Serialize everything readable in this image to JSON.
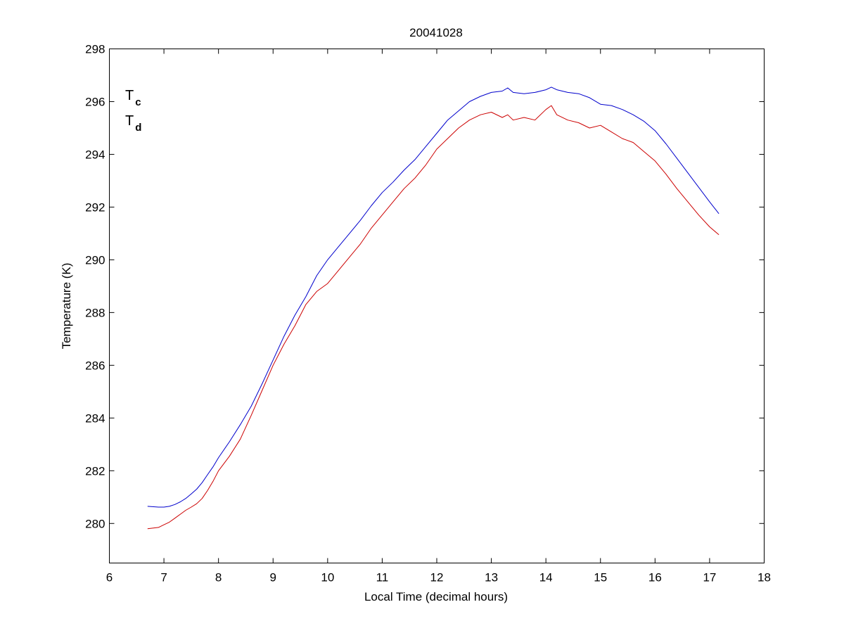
{
  "chart_data": {
    "type": "line",
    "title": "20041028",
    "xlabel": "Local Time (decimal hours)",
    "ylabel": "Temperature (K)",
    "xlim": [
      6,
      18
    ],
    "ylim": [
      278.5,
      298
    ],
    "xticks": [
      6,
      7,
      8,
      9,
      10,
      11,
      12,
      13,
      14,
      15,
      16,
      17,
      18
    ],
    "yticks": [
      280,
      282,
      284,
      286,
      288,
      290,
      292,
      294,
      296,
      298
    ],
    "grid": false,
    "legend": {
      "placement": "top-left",
      "entries": [
        {
          "base": "T",
          "sub": "c",
          "color": "#0000cc"
        },
        {
          "base": "T",
          "sub": "d",
          "color": "#cc0000"
        }
      ]
    },
    "series": [
      {
        "color": "#0000cc",
        "x": [
          6.7,
          6.9,
          7.0,
          7.1,
          7.2,
          7.3,
          7.4,
          7.5,
          7.6,
          7.7,
          7.8,
          7.9,
          8.0,
          8.2,
          8.4,
          8.6,
          8.8,
          9.0,
          9.2,
          9.4,
          9.6,
          9.8,
          10.0,
          10.2,
          10.4,
          10.6,
          10.8,
          11.0,
          11.2,
          11.4,
          11.6,
          11.8,
          12.0,
          12.2,
          12.4,
          12.6,
          12.8,
          13.0,
          13.2,
          13.3,
          13.4,
          13.6,
          13.8,
          14.0,
          14.1,
          14.2,
          14.4,
          14.6,
          14.8,
          15.0,
          15.2,
          15.4,
          15.6,
          15.8,
          16.0,
          16.2,
          16.4,
          16.6,
          16.8,
          17.0,
          17.17
        ],
        "y": [
          280.65,
          280.62,
          280.62,
          280.65,
          280.72,
          280.82,
          280.95,
          281.12,
          281.3,
          281.55,
          281.85,
          282.15,
          282.5,
          283.1,
          283.75,
          284.45,
          285.3,
          286.2,
          287.1,
          287.9,
          288.6,
          289.4,
          290.0,
          290.5,
          291.0,
          291.5,
          292.05,
          292.55,
          292.95,
          293.4,
          293.8,
          294.3,
          294.8,
          295.3,
          295.65,
          296.0,
          296.2,
          296.35,
          296.4,
          296.52,
          296.35,
          296.3,
          296.35,
          296.45,
          296.55,
          296.45,
          296.35,
          296.3,
          296.15,
          295.9,
          295.85,
          295.7,
          295.5,
          295.25,
          294.9,
          294.4,
          293.85,
          293.3,
          292.75,
          292.2,
          291.75
        ]
      },
      {
        "color": "#cc0000",
        "x": [
          6.7,
          6.9,
          7.0,
          7.1,
          7.2,
          7.3,
          7.4,
          7.5,
          7.6,
          7.7,
          7.8,
          7.9,
          8.0,
          8.2,
          8.4,
          8.6,
          8.8,
          9.0,
          9.2,
          9.4,
          9.6,
          9.8,
          10.0,
          10.2,
          10.4,
          10.6,
          10.8,
          11.0,
          11.2,
          11.4,
          11.6,
          11.8,
          12.0,
          12.2,
          12.4,
          12.6,
          12.8,
          13.0,
          13.2,
          13.3,
          13.4,
          13.6,
          13.8,
          14.0,
          14.1,
          14.2,
          14.4,
          14.6,
          14.8,
          15.0,
          15.2,
          15.4,
          15.6,
          15.8,
          16.0,
          16.2,
          16.4,
          16.6,
          16.8,
          17.0,
          17.17
        ],
        "y": [
          279.8,
          279.85,
          279.95,
          280.05,
          280.2,
          280.35,
          280.5,
          280.62,
          280.75,
          280.95,
          281.25,
          281.6,
          282.0,
          282.55,
          283.2,
          284.1,
          285.05,
          286.0,
          286.8,
          287.5,
          288.3,
          288.8,
          289.1,
          289.6,
          290.1,
          290.6,
          291.2,
          291.7,
          292.2,
          292.7,
          293.1,
          293.6,
          294.2,
          294.6,
          295.0,
          295.3,
          295.5,
          295.6,
          295.4,
          295.5,
          295.3,
          295.4,
          295.3,
          295.7,
          295.85,
          295.5,
          295.3,
          295.2,
          295.0,
          295.1,
          294.85,
          294.6,
          294.45,
          294.1,
          293.75,
          293.25,
          292.7,
          292.2,
          291.7,
          291.25,
          290.95
        ]
      }
    ]
  }
}
